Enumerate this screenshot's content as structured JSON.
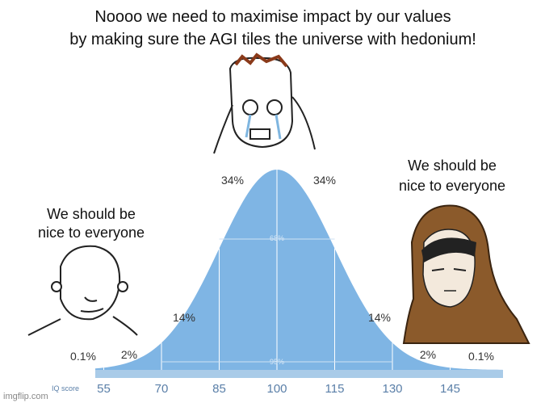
{
  "caption_top": [
    "Noooo we need to maximise impact by our values",
    "by making sure the AGI tiles the universe with hedonium!"
  ],
  "caption_left": [
    "We should be",
    "nice to everyone"
  ],
  "caption_right": [
    "We should be",
    "nice to everyone"
  ],
  "curve": {
    "labels": [
      "34%",
      "34%",
      "14%",
      "14%",
      "0.1%",
      "2%",
      "2%",
      "0.1%"
    ],
    "inner_labels": [
      "68%",
      "95%"
    ],
    "axis_title": "IQ score",
    "axis_labels": [
      "55",
      "70",
      "85",
      "100",
      "115",
      "130",
      "145"
    ]
  },
  "watermark": "imgflip.com"
}
